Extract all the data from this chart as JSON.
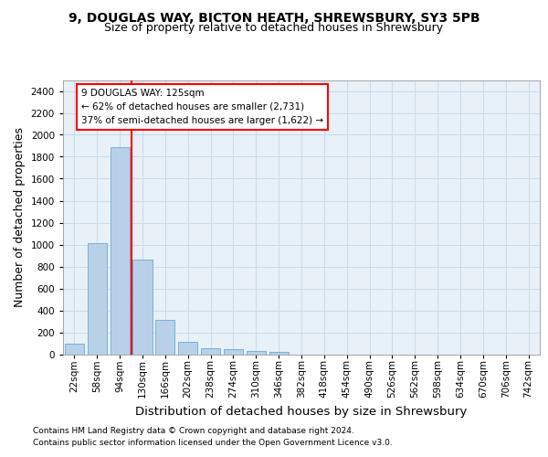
{
  "title_line1": "9, DOUGLAS WAY, BICTON HEATH, SHREWSBURY, SY3 5PB",
  "title_line2": "Size of property relative to detached houses in Shrewsbury",
  "xlabel": "Distribution of detached houses by size in Shrewsbury",
  "ylabel": "Number of detached properties",
  "bar_labels": [
    "22sqm",
    "58sqm",
    "94sqm",
    "130sqm",
    "166sqm",
    "202sqm",
    "238sqm",
    "274sqm",
    "310sqm",
    "346sqm",
    "382sqm",
    "418sqm",
    "454sqm",
    "490sqm",
    "526sqm",
    "562sqm",
    "598sqm",
    "634sqm",
    "670sqm",
    "706sqm",
    "742sqm"
  ],
  "bar_values": [
    95,
    1010,
    1890,
    860,
    315,
    115,
    58,
    50,
    30,
    20,
    0,
    0,
    0,
    0,
    0,
    0,
    0,
    0,
    0,
    0,
    0
  ],
  "bar_color": "#b8d0e8",
  "bar_edge_color": "#6aaad4",
  "vline_position": 2.5,
  "vline_color": "red",
  "annotation_text": "9 DOUGLAS WAY: 125sqm\n← 62% of detached houses are smaller (2,731)\n37% of semi-detached houses are larger (1,622) →",
  "annotation_box_color": "white",
  "annotation_box_edge_color": "red",
  "ylim": [
    0,
    2500
  ],
  "yticks": [
    0,
    200,
    400,
    600,
    800,
    1000,
    1200,
    1400,
    1600,
    1800,
    2000,
    2200,
    2400
  ],
  "grid_color": "#c8dcea",
  "background_color": "#e8f0f8",
  "footer_line1": "Contains HM Land Registry data © Crown copyright and database right 2024.",
  "footer_line2": "Contains public sector information licensed under the Open Government Licence v3.0.",
  "title_fontsize": 10,
  "subtitle_fontsize": 9,
  "axis_label_fontsize": 9,
  "tick_fontsize": 7.5,
  "annotation_fontsize": 7.5,
  "footer_fontsize": 6.5
}
